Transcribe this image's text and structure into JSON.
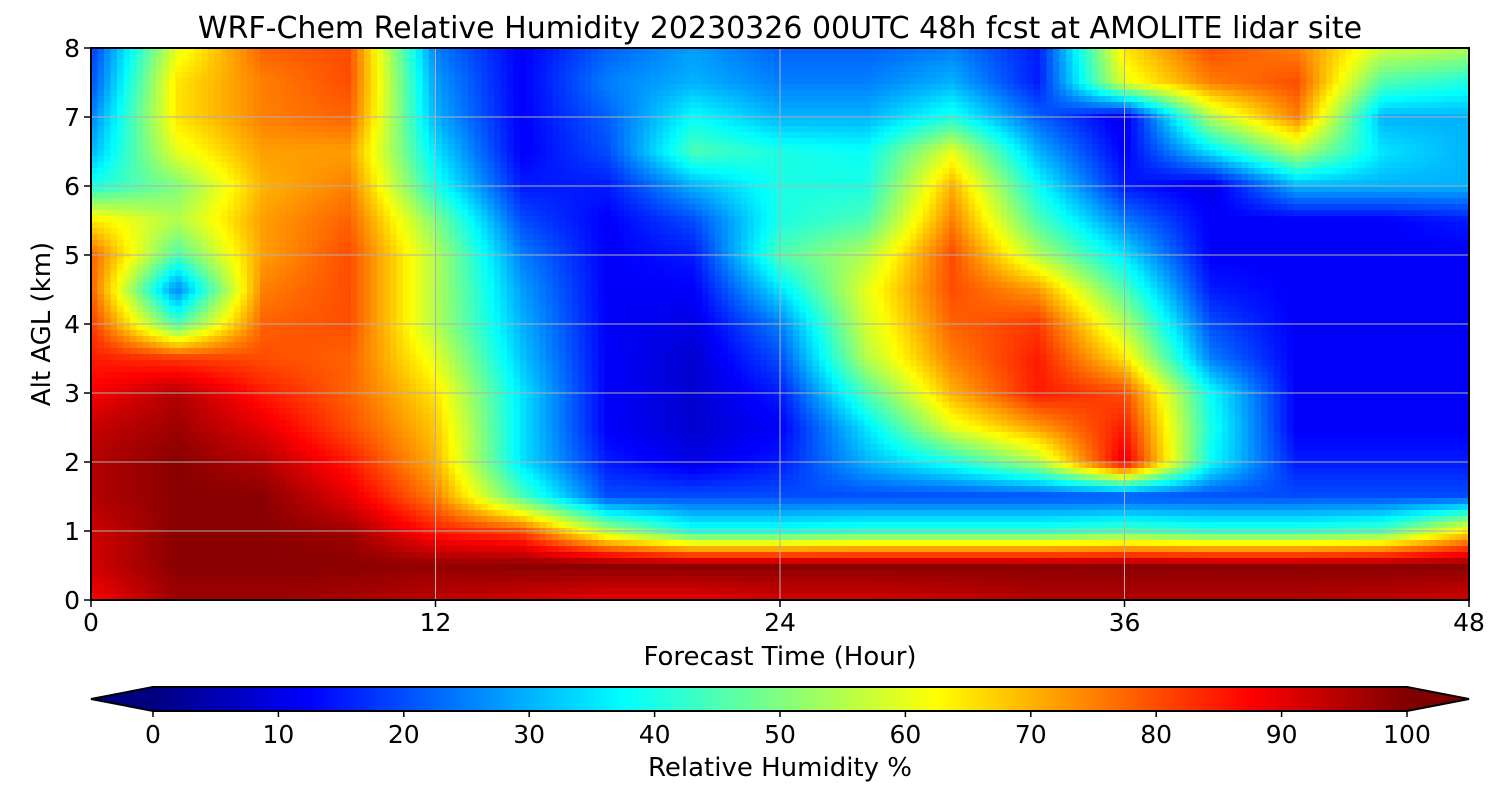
{
  "chart_data": {
    "type": "heatmap",
    "title": "WRF-Chem Relative Humidity 20230326 00UTC 48h fcst at AMOLITE lidar site",
    "xlabel": "Forecast Time (Hour)",
    "ylabel": "Alt AGL (km)",
    "xlim": [
      0,
      48
    ],
    "ylim": [
      0,
      8
    ],
    "xticks": [
      "0",
      "12",
      "24",
      "36",
      "48"
    ],
    "yticks": [
      "0",
      "1",
      "2",
      "3",
      "4",
      "5",
      "6",
      "7",
      "8"
    ],
    "grid": true,
    "colormap": "jet",
    "value_range": [
      0,
      100
    ],
    "colorbar": {
      "label": "Relative Humidity %",
      "ticks": [
        "0",
        "10",
        "20",
        "30",
        "40",
        "50",
        "60",
        "70",
        "80",
        "90",
        "100"
      ],
      "extend": "both"
    },
    "grid_x": [
      0,
      3,
      6,
      9,
      12,
      15,
      18,
      21,
      24,
      27,
      30,
      33,
      36,
      39,
      42,
      45,
      48
    ],
    "grid_y": [
      0,
      0.5,
      1,
      1.5,
      2,
      2.5,
      3,
      3.5,
      4,
      4.5,
      5,
      5.5,
      6,
      6.5,
      7,
      7.5,
      8
    ],
    "values": [
      [
        88,
        97,
        97,
        96,
        94,
        92,
        90,
        90,
        92,
        92,
        93,
        95,
        95,
        95,
        95,
        94,
        92
      ],
      [
        92,
        99,
        99,
        99,
        98,
        99,
        99,
        99,
        99,
        99,
        99,
        99,
        99,
        99,
        99,
        99,
        99
      ],
      [
        92,
        99,
        99,
        97,
        85,
        80,
        55,
        40,
        40,
        42,
        42,
        42,
        45,
        42,
        42,
        45,
        65
      ],
      [
        95,
        99,
        99,
        90,
        75,
        45,
        20,
        20,
        20,
        20,
        20,
        20,
        20,
        20,
        20,
        20,
        20
      ],
      [
        95,
        99,
        95,
        85,
        70,
        35,
        15,
        10,
        15,
        30,
        40,
        55,
        90,
        38,
        15,
        15,
        15
      ],
      [
        93,
        97,
        90,
        80,
        68,
        35,
        12,
        8,
        12,
        35,
        60,
        72,
        85,
        40,
        12,
        12,
        12
      ],
      [
        88,
        95,
        85,
        78,
        65,
        35,
        12,
        8,
        15,
        45,
        70,
        85,
        80,
        38,
        12,
        12,
        12
      ],
      [
        85,
        82,
        80,
        78,
        60,
        32,
        12,
        8,
        20,
        55,
        75,
        85,
        65,
        25,
        12,
        12,
        12
      ],
      [
        82,
        45,
        78,
        80,
        55,
        30,
        12,
        10,
        25,
        58,
        78,
        82,
        55,
        20,
        12,
        12,
        12
      ],
      [
        78,
        25,
        75,
        80,
        55,
        28,
        12,
        12,
        35,
        60,
        80,
        72,
        45,
        15,
        12,
        12,
        12
      ],
      [
        78,
        45,
        72,
        80,
        55,
        25,
        12,
        15,
        45,
        55,
        80,
        55,
        35,
        12,
        12,
        12,
        12
      ],
      [
        65,
        55,
        72,
        78,
        50,
        20,
        12,
        20,
        40,
        45,
        75,
        45,
        25,
        12,
        12,
        12,
        15
      ],
      [
        40,
        50,
        70,
        75,
        40,
        15,
        15,
        30,
        40,
        40,
        70,
        38,
        15,
        10,
        30,
        30,
        30
      ],
      [
        30,
        60,
        72,
        72,
        35,
        12,
        20,
        45,
        40,
        38,
        60,
        30,
        12,
        35,
        55,
        35,
        30
      ],
      [
        25,
        65,
        75,
        78,
        30,
        12,
        22,
        38,
        30,
        30,
        40,
        22,
        10,
        55,
        75,
        30,
        30
      ],
      [
        20,
        65,
        75,
        80,
        28,
        12,
        25,
        30,
        25,
        25,
        30,
        15,
        60,
        75,
        80,
        45,
        40
      ],
      [
        18,
        60,
        78,
        80,
        25,
        12,
        22,
        28,
        22,
        22,
        25,
        15,
        65,
        80,
        75,
        58,
        55
      ]
    ]
  }
}
